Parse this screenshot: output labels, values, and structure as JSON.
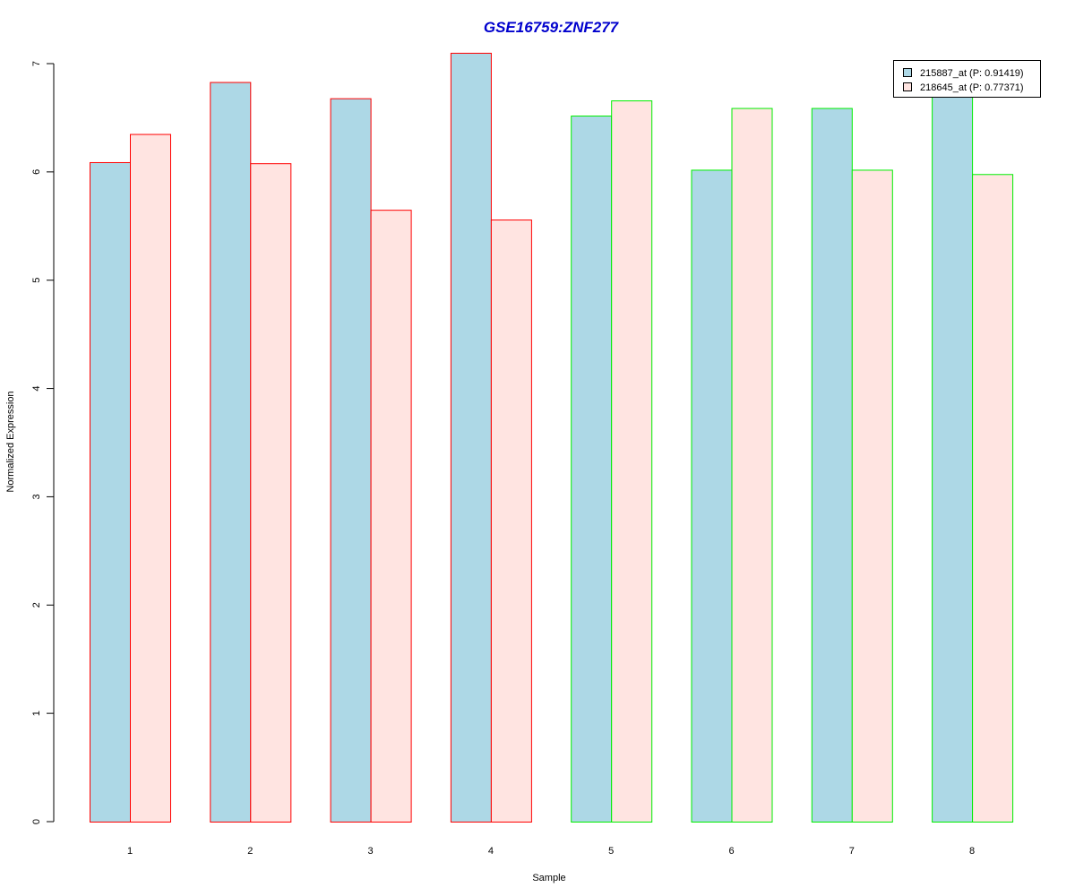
{
  "chart_data": {
    "type": "bar",
    "title": "GSE16759:ZNF277",
    "xlabel": "Sample",
    "ylabel": "Normalized Expression",
    "categories": [
      "1",
      "2",
      "3",
      "4",
      "5",
      "6",
      "7",
      "8"
    ],
    "series": [
      {
        "name": "215887_at (P: 0.91419)",
        "fill": "#add8e6",
        "values": [
          6.09,
          6.83,
          6.68,
          7.1,
          6.52,
          6.02,
          6.59,
          6.8
        ]
      },
      {
        "name": "218645_at (P: 0.77371)",
        "fill": "#ffe4e1",
        "values": [
          6.35,
          6.08,
          5.65,
          5.56,
          6.66,
          6.59,
          6.02,
          5.98
        ]
      }
    ],
    "group_border_colors": [
      "#ff0000",
      "#ff0000",
      "#ff0000",
      "#ff0000",
      "#00ee00",
      "#00ee00",
      "#00ee00",
      "#00ee00"
    ],
    "ylim": [
      0,
      7
    ],
    "yticks": [
      "0",
      "1",
      "2",
      "3",
      "4",
      "5",
      "6",
      "7"
    ],
    "grid": false,
    "legend_position": "top-right"
  }
}
